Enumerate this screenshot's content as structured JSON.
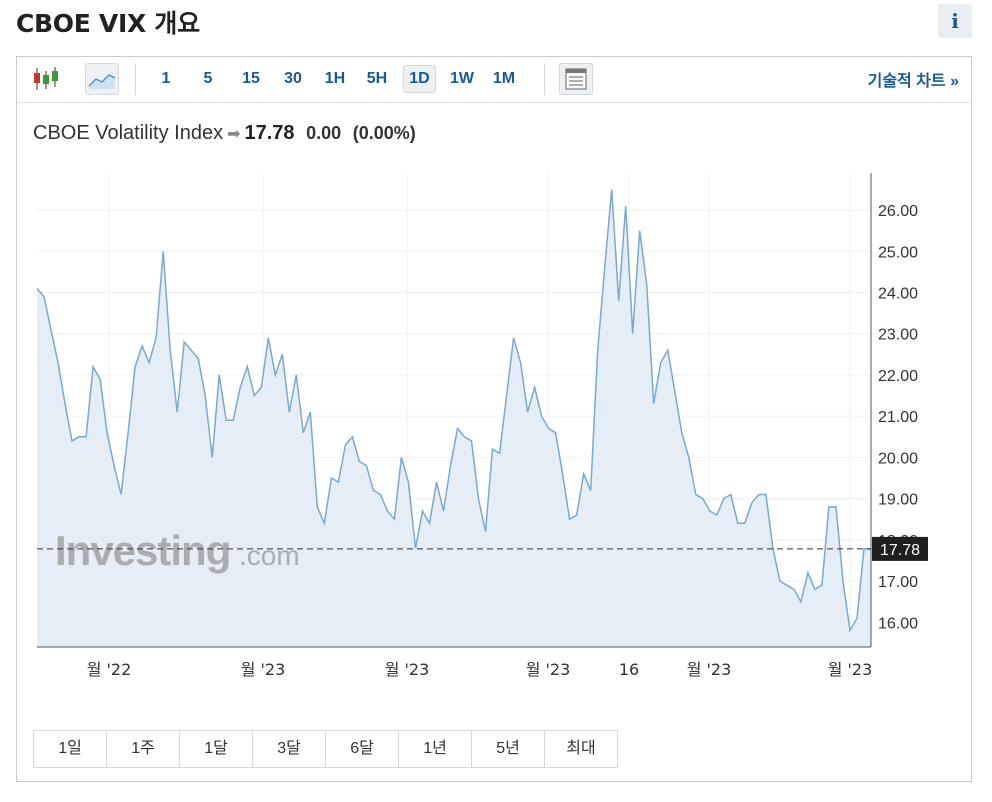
{
  "page_title": "CBOE VIX 개요",
  "info_label": "i",
  "toolbar": {
    "intervals": [
      "1",
      "5",
      "15",
      "30",
      "1H",
      "5H",
      "1D",
      "1W",
      "1M"
    ],
    "active_interval": "1D",
    "tech_chart_label": "기술적 차트 »"
  },
  "quote": {
    "name": "CBOE Volatility Index",
    "last": "17.78",
    "change": "0.00",
    "change_pct": "(0.00%)"
  },
  "watermark": {
    "brand": "Investing",
    "suffix": ".com"
  },
  "ranges": [
    "1일",
    "1주",
    "1달",
    "3달",
    "6달",
    "1년",
    "5년",
    "최대"
  ],
  "colors": {
    "line": "#7aa8cf",
    "area": "#e5eef7",
    "accent": "#1a5a96",
    "price_tag": "#1f1f1f"
  },
  "chart_data": {
    "type": "area",
    "ylim": [
      15.4,
      26.9
    ],
    "y_ticks": [
      "16.00",
      "17.00",
      "18.00",
      "19.00",
      "20.00",
      "21.00",
      "22.00",
      "23.00",
      "24.00",
      "25.00",
      "26.00"
    ],
    "x_ticks": [
      "월 '22",
      "월 '23",
      "월 '23",
      "월 '23",
      "16",
      "월 '23",
      "월 '23"
    ],
    "current_value": 17.78,
    "current_label": "17.78",
    "values": [
      24.1,
      23.9,
      23.1,
      22.3,
      21.3,
      20.4,
      20.5,
      20.5,
      22.2,
      21.9,
      20.6,
      19.8,
      19.1,
      20.6,
      22.2,
      22.7,
      22.3,
      22.9,
      25.0,
      22.6,
      21.1,
      22.8,
      22.6,
      22.4,
      21.5,
      20.0,
      22.0,
      20.9,
      20.9,
      21.7,
      22.2,
      21.5,
      21.7,
      22.9,
      22.0,
      22.5,
      21.1,
      22.0,
      20.6,
      21.1,
      18.8,
      18.4,
      19.5,
      19.4,
      20.3,
      20.5,
      19.9,
      19.8,
      19.2,
      19.1,
      18.7,
      18.5,
      20.0,
      19.4,
      17.8,
      18.7,
      18.4,
      19.4,
      18.7,
      19.8,
      20.7,
      20.5,
      20.4,
      19.0,
      18.2,
      20.2,
      20.1,
      21.5,
      22.9,
      22.3,
      21.1,
      21.7,
      21.0,
      20.7,
      20.6,
      19.6,
      18.5,
      18.6,
      19.6,
      19.2,
      22.6,
      24.6,
      26.5,
      23.8,
      26.1,
      23.0,
      25.5,
      24.2,
      21.3,
      22.3,
      22.6,
      21.6,
      20.6,
      20.0,
      19.1,
      19.0,
      18.7,
      18.6,
      19.0,
      19.1,
      18.4,
      18.4,
      18.9,
      19.1,
      19.1,
      17.8,
      17.0,
      16.9,
      16.8,
      16.5,
      17.2,
      16.8,
      16.9,
      18.8,
      18.8,
      17.0,
      15.8,
      16.1,
      17.78,
      17.78
    ]
  }
}
